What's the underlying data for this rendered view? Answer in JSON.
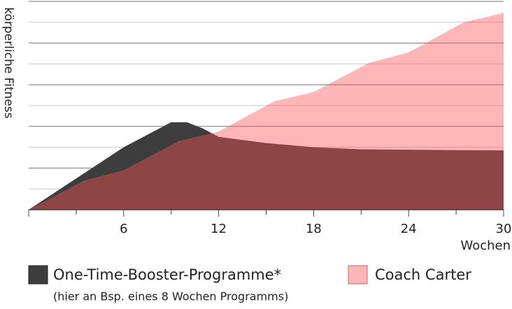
{
  "chart_data": {
    "type": "area",
    "ylabel": "körperliche Fitness",
    "xlabel": "Wochen",
    "xlim": [
      0,
      30
    ],
    "xticks": [
      6,
      12,
      18,
      24,
      30
    ],
    "ylim": [
      0,
      10
    ],
    "ygrid": [
      1,
      2,
      3,
      4,
      5,
      6,
      7,
      8,
      9,
      10
    ],
    "series": [
      {
        "name": "One-Time-Booster-Programme*",
        "note": "(hier an Bsp. eines 8 Wochen Programms)",
        "color": "#3d3d3d",
        "x": [
          0,
          3,
          6,
          8,
          9,
          10,
          11,
          12,
          15,
          18,
          21,
          24,
          27,
          30
        ],
        "values": [
          0,
          1.5,
          3.0,
          3.8,
          4.2,
          4.2,
          3.9,
          3.5,
          3.2,
          3.0,
          2.9,
          2.88,
          2.86,
          2.85
        ]
      },
      {
        "name": "Coach Carter",
        "color": "#ff5050",
        "x": [
          0,
          3.5,
          6,
          9.5,
          12,
          15.5,
          18,
          21.5,
          24,
          27.5,
          30
        ],
        "values": [
          0,
          1.4,
          1.9,
          3.3,
          3.75,
          5.2,
          5.65,
          7.05,
          7.55,
          9.0,
          9.45
        ]
      }
    ]
  }
}
